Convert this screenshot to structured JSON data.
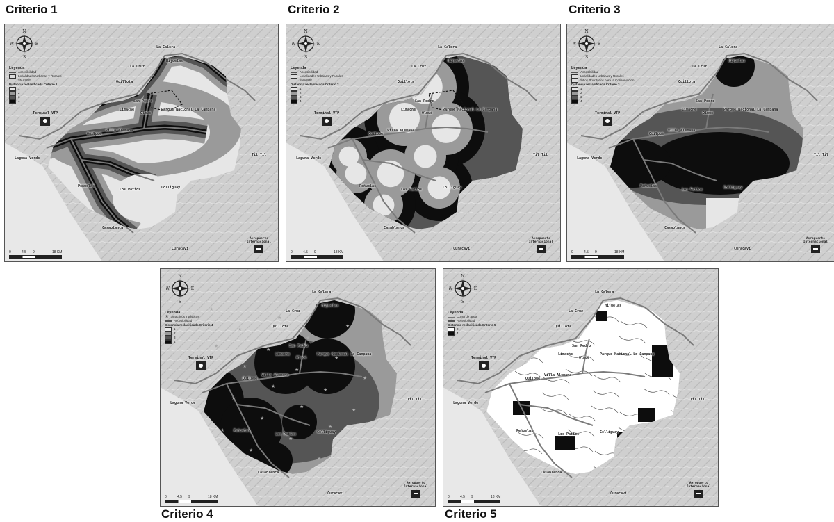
{
  "figure": {
    "panels": [
      {
        "title": "Criterio 1",
        "legend": {
          "title": "Leyenda",
          "lines": [
            "Accesibilidad",
            "Localidades Urbanas y Rurales",
            "SNASPE"
          ],
          "class_title": "Distancia reclasificada Criterio 1",
          "classes": [
            "1",
            "2",
            "3",
            "4"
          ]
        }
      },
      {
        "title": "Criterio 2",
        "legend": {
          "title": "Leyenda",
          "lines": [
            "Accesibilidad",
            "Localidades Urbanas y Rurales",
            "SNASPE"
          ],
          "class_title": "Distancia reclasificada Criterio 2",
          "classes": [
            "1",
            "2",
            "3",
            "4"
          ]
        }
      },
      {
        "title": "Criterio 3",
        "legend": {
          "title": "Leyenda",
          "lines": [
            "Accesibilidad",
            "Localidades Urbanas y Rurales",
            "Sitios Prioritarios para la Conservación"
          ],
          "class_title": "Distancia reclasificada Criterio 3",
          "classes": [
            "1",
            "2",
            "3",
            "4"
          ]
        }
      },
      {
        "title": "Criterio 4",
        "legend": {
          "title": "Leyenda",
          "lines": [
            "Atractivos Turísticos",
            "Accesibilidad"
          ],
          "class_title": "Distancia reclasificada Criterio 4",
          "classes": [
            "1",
            "2",
            "3",
            "4"
          ]
        }
      },
      {
        "title": "Criterio 5",
        "legend": {
          "title": "Leyenda",
          "lines": [
            "Curso de agua",
            "Accesibilidad"
          ],
          "class_title": "Distancia reclasificada Criterio 5",
          "classes": [
            "0",
            "4"
          ]
        }
      }
    ],
    "class_colors": {
      "1": "#e6e6e6",
      "2": "#9a9a9a",
      "3": "#555555",
      "4": "#0d0d0d",
      "0": "#ffffff"
    },
    "compass": {
      "n": "N",
      "s": "S",
      "e": "E",
      "w": "W"
    },
    "scale": {
      "ticks": [
        "0",
        "4.5",
        "9",
        "18 KM"
      ]
    },
    "places": {
      "la_calera": "La Calera",
      "la_cruz": "La Cruz",
      "quillota": "Quillota",
      "hijuelas": "Hijuelas",
      "san_pedro": "San Pedro",
      "limache": "Limache",
      "olmue": "Olmué",
      "parque": "Parque Nacional La Campana",
      "quilpue": "Quilpué",
      "villa_alemana": "Villa Alemana",
      "laguna_verde": "Laguna Verde",
      "penuelas": "Peñuelas",
      "los_patios": "Los Patios",
      "colliguay": "Colliguay",
      "embalse": "Embalse Peñuelas",
      "casablanca": "Casablanca",
      "curacavi": "Curacaví",
      "tiltil": "Til Til",
      "ocoa": "Ocoa"
    },
    "terminal": "Terminal VTP",
    "airport": [
      "Aeropuerto",
      "Internacional"
    ]
  }
}
